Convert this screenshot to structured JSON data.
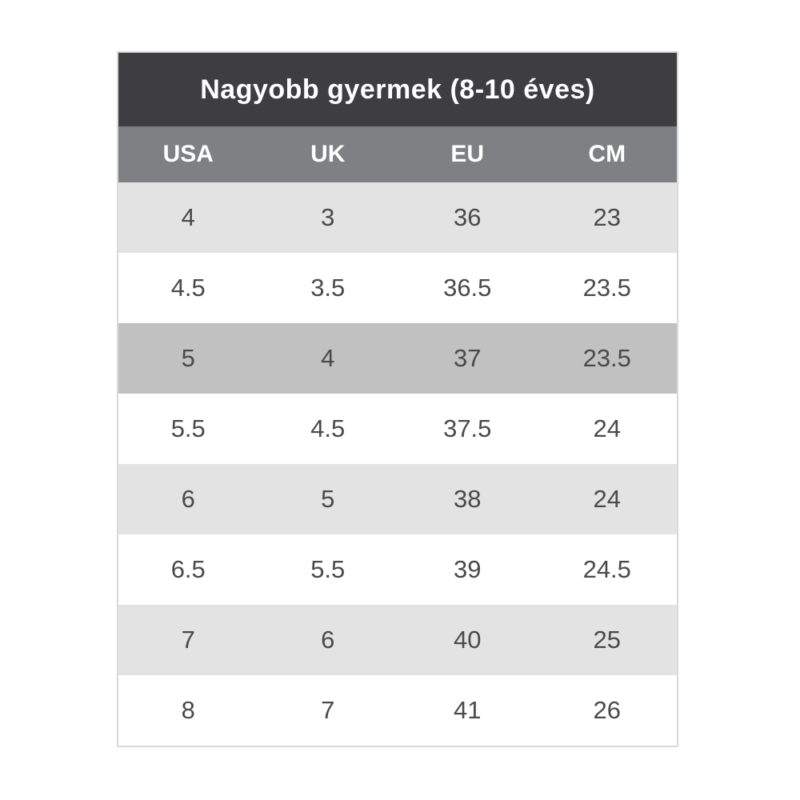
{
  "chart_data": {
    "type": "table",
    "title": "Nagyobb gyermek (8-10 éves)",
    "columns": [
      "USA",
      "UK",
      "EU",
      "CM"
    ],
    "rows": [
      [
        "4",
        "3",
        "36",
        "23"
      ],
      [
        "4.5",
        "3.5",
        "36.5",
        "23.5"
      ],
      [
        "5",
        "4",
        "37",
        "23.5"
      ],
      [
        "5.5",
        "4.5",
        "37.5",
        "24"
      ],
      [
        "6",
        "5",
        "38",
        "24"
      ],
      [
        "6.5",
        "5.5",
        "39",
        "24.5"
      ],
      [
        "7",
        "6",
        "40",
        "25"
      ],
      [
        "8",
        "7",
        "41",
        "26"
      ]
    ],
    "highlighted_row_index": 2,
    "row_striping": [
      "light",
      "white",
      "highlight",
      "white",
      "light",
      "white",
      "light",
      "white"
    ],
    "layout_hints": {
      "grid": "off",
      "alignment": "center"
    }
  },
  "colors": {
    "title_bg": "#3e3e41",
    "header_bg": "#7f8083",
    "row_light": "#e3e3e3",
    "row_highlight": "#c1c1c1",
    "row_white": "#ffffff",
    "cell_text": "#4a4a4a",
    "header_text": "#ffffff",
    "border": "#d9d9d9"
  }
}
